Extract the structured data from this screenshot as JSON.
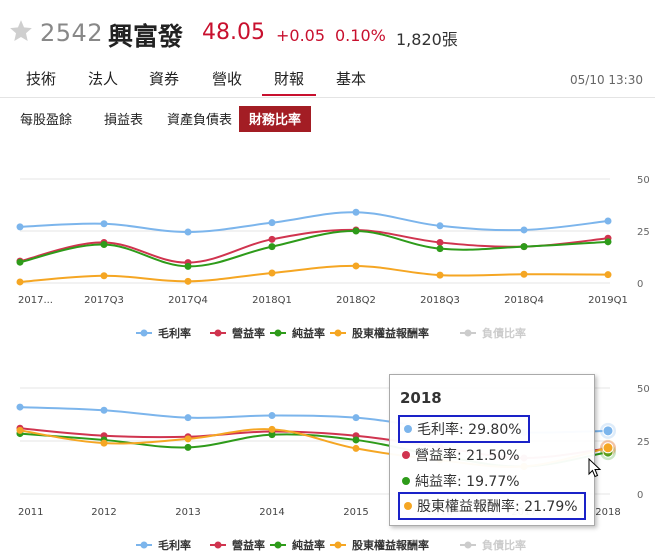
{
  "header": {
    "code": "2542",
    "name": "興富發",
    "price": "48.05",
    "change": "+0.05",
    "change_pct": "0.10%",
    "volume": "1,820張",
    "up_color": "#c8102e"
  },
  "tabs": [
    {
      "label": "技術"
    },
    {
      "label": "法人"
    },
    {
      "label": "資券"
    },
    {
      "label": "營收"
    },
    {
      "label": "財報",
      "active": true
    },
    {
      "label": "基本"
    }
  ],
  "timestamp": "05/10 13:30",
  "subtabs": [
    {
      "label": "每股盈餘"
    },
    {
      "label": "損益表"
    },
    {
      "label": "資產負債表"
    },
    {
      "label": "財務比率",
      "active": true
    }
  ],
  "legend": [
    {
      "label": "毛利率",
      "color": "#7cb5ec"
    },
    {
      "label": "營益率",
      "color": "#d0344f"
    },
    {
      "label": "純益率",
      "color": "#2e9b1a"
    },
    {
      "label": "股東權益報酬率",
      "color": "#f5a623"
    },
    {
      "label": "負債比率",
      "color": "#cccccc",
      "disabled": true
    }
  ],
  "chart_data": [
    {
      "type": "line",
      "categories": [
        "2017...",
        "2017Q3",
        "2017Q4",
        "2018Q1",
        "2018Q2",
        "2018Q3",
        "2018Q4",
        "2019Q1"
      ],
      "ylim": [
        0,
        50
      ],
      "yticks": [
        "50",
        "25",
        "0"
      ],
      "series": [
        {
          "name": "毛利率",
          "values": [
            27,
            28.5,
            24.5,
            29,
            34,
            27.5,
            25.5,
            29.8
          ]
        },
        {
          "name": "營益率",
          "values": [
            10.5,
            19.5,
            9.8,
            21,
            25.5,
            19.5,
            17.5,
            21.5
          ]
        },
        {
          "name": "純益率",
          "values": [
            10,
            18.5,
            8,
            17.5,
            25,
            16.5,
            17.5,
            19.8
          ]
        },
        {
          "name": "股東權益報酬率",
          "values": [
            0.5,
            3.5,
            0.8,
            4.8,
            8.2,
            3.8,
            4.2,
            4.0
          ]
        }
      ]
    },
    {
      "type": "line",
      "categories": [
        "2011",
        "2012",
        "2013",
        "2014",
        "2015",
        "2016",
        "2017",
        "2018"
      ],
      "ylim": [
        0,
        50
      ],
      "yticks": [
        "50",
        "25",
        "0"
      ],
      "series": [
        {
          "name": "毛利率",
          "values": [
            41,
            39.5,
            36,
            37,
            36,
            31,
            29,
            29.8
          ]
        },
        {
          "name": "營益率",
          "values": [
            31,
            27.5,
            27,
            29.5,
            27.5,
            22,
            17,
            21.5
          ]
        },
        {
          "name": "純益率",
          "values": [
            28.5,
            25.5,
            22,
            28,
            25.5,
            18,
            13,
            19.77
          ]
        },
        {
          "name": "股東權益報酬率",
          "values": [
            30,
            24,
            26,
            30.5,
            21.5,
            16,
            13,
            21.79
          ]
        }
      ]
    }
  ],
  "tooltip": {
    "title": "2018",
    "rows": [
      {
        "label": "毛利率: 29.80%",
        "color": "#7cb5ec",
        "boxed": true
      },
      {
        "label": "營益率: 21.50%",
        "color": "#d0344f"
      },
      {
        "label": "純益率: 19.77%",
        "color": "#2e9b1a"
      },
      {
        "label": "股東權益報酬率: 21.79%",
        "color": "#f5a623",
        "boxed": true
      }
    ]
  }
}
